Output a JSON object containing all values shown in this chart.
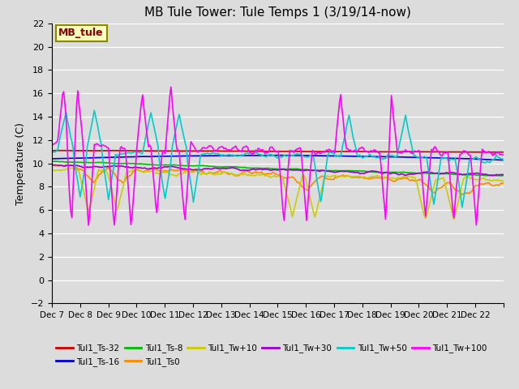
{
  "title": "MB Tule Tower: Tule Temps 1 (3/19/14-now)",
  "ylabel": "Temperature (C)",
  "ylim": [
    -2,
    22
  ],
  "yticks": [
    -2,
    0,
    2,
    4,
    6,
    8,
    10,
    12,
    14,
    16,
    18,
    20,
    22
  ],
  "bg_color": "#dcdcdc",
  "grid_color": "#ffffff",
  "series": {
    "Tul1_Ts-32": {
      "color": "#cc0000",
      "lw": 1.2
    },
    "Tul1_Ts-16": {
      "color": "#0000cc",
      "lw": 1.2
    },
    "Tul1_Ts-8": {
      "color": "#00bb00",
      "lw": 1.2
    },
    "Tul1_Ts0": {
      "color": "#ff8800",
      "lw": 1.2
    },
    "Tul1_Tw+10": {
      "color": "#cccc00",
      "lw": 1.2
    },
    "Tul1_Tw+30": {
      "color": "#9900cc",
      "lw": 1.2
    },
    "Tul1_Tw+50": {
      "color": "#00cccc",
      "lw": 1.2
    },
    "Tul1_Tw+100": {
      "color": "#ff00ff",
      "lw": 1.2
    }
  },
  "x_tick_labels": [
    "Dec 7",
    "Dec 8",
    "Dec 9",
    "Dec 10",
    "Dec 11",
    "Dec 12",
    "Dec 13",
    "Dec 14",
    "Dec 15",
    "Dec 16",
    "Dec 17",
    "Dec 18",
    "Dec 19",
    "Dec 20",
    "Dec 21",
    "Dec 22"
  ],
  "annotation_text": "MB_tule",
  "annotation_color": "#880000",
  "annotation_bg": "#ffffbb",
  "annotation_border": "#888800",
  "n_days": 16,
  "pts_per_day": 24
}
